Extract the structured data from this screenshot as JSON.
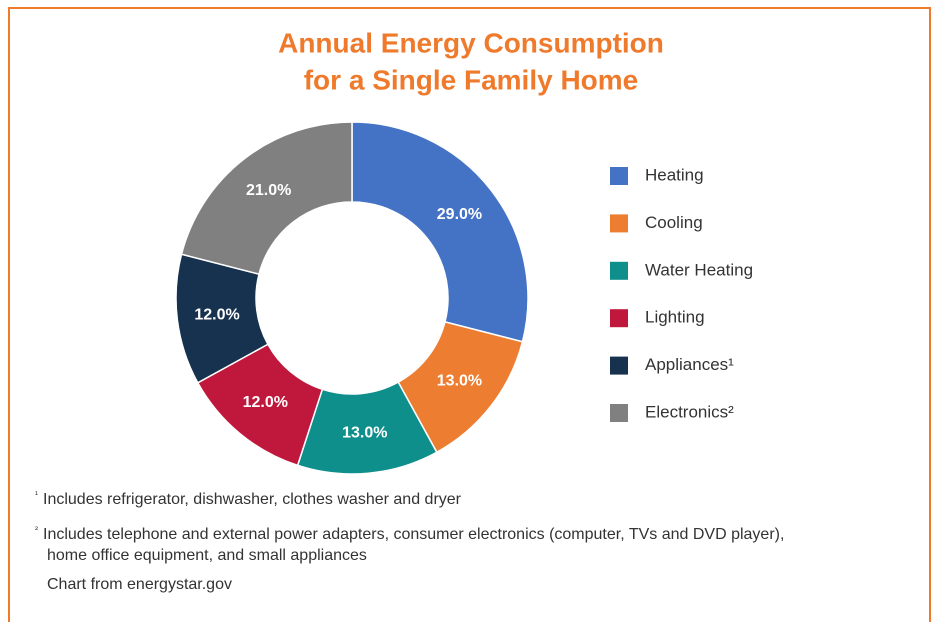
{
  "chart_data": {
    "type": "donut",
    "title": [
      "Annual Energy Consumption",
      "for a Single Family Home"
    ],
    "categories": [
      "Heating",
      "Cooling",
      "Water Heating",
      "Lighting",
      "Appliances¹",
      "Electronics²"
    ],
    "values": [
      29,
      13,
      13,
      12,
      12,
      21
    ],
    "value_labels": [
      "29.0%",
      "13.0%",
      "13.0%",
      "12.0%",
      "12.0%",
      "21.0%"
    ],
    "colors": [
      "#4472c4",
      "#ed7d31",
      "#0e8f8b",
      "#c0183c",
      "#16324f",
      "#808080"
    ],
    "legend": "right",
    "footnotes": [
      {
        "marker": "¹",
        "lines": [
          "Includes refrigerator, dishwasher, clothes washer and dryer"
        ]
      },
      {
        "marker": "²",
        "lines": [
          "Includes telephone and external power adapters, consumer electronics (computer, TVs and DVD player),",
          "home office equipment, and small appliances"
        ]
      }
    ],
    "source": "Chart from energystar.gov"
  }
}
